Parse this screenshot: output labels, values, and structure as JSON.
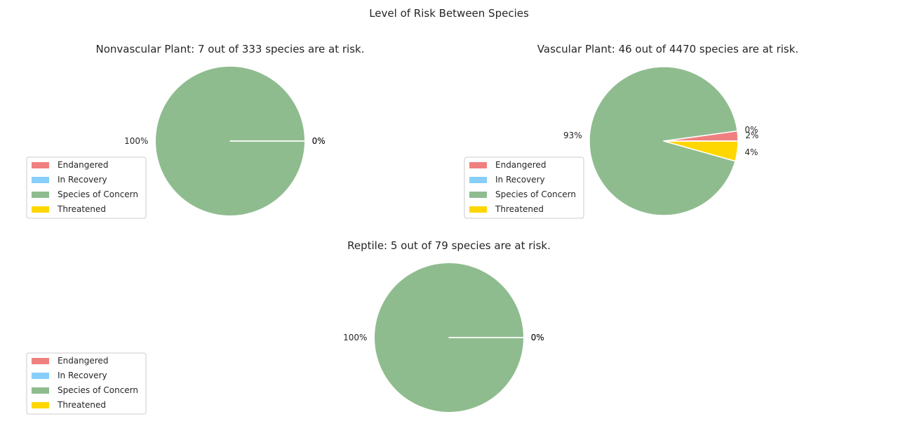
{
  "suptitle": "Level of Risk Between Species",
  "chart_data": [
    {
      "type": "pie",
      "title": "Nonvascular Plant: 7 out of 333 species are at risk.",
      "categories": [
        "Endangered",
        "In Recovery",
        "Species of Concern",
        "Threatened"
      ],
      "values": [
        0,
        0,
        7,
        0
      ],
      "pct_labels": [
        "0%",
        "0%",
        "100%",
        "0%"
      ],
      "legend": {
        "placement": "lower-left",
        "entries": [
          "Endangered",
          "In Recovery",
          "Species of Concern",
          "Threatened"
        ]
      }
    },
    {
      "type": "pie",
      "title": "Vascular Plant: 46 out of 4470 species are at risk.",
      "categories": [
        "Endangered",
        "In Recovery",
        "Species of Concern",
        "Threatened"
      ],
      "values": [
        1,
        0,
        43,
        2
      ],
      "pct_labels": [
        "2%",
        "0%",
        "93%",
        "4%"
      ],
      "legend": {
        "placement": "lower-left",
        "entries": [
          "Endangered",
          "In Recovery",
          "Species of Concern",
          "Threatened"
        ]
      }
    },
    {
      "type": "pie",
      "title": "Reptile: 5 out of 79 species are at risk.",
      "categories": [
        "Endangered",
        "In Recovery",
        "Species of Concern",
        "Threatened"
      ],
      "values": [
        0,
        0,
        5,
        0
      ],
      "pct_labels": [
        "0%",
        "0%",
        "100%",
        "0%"
      ],
      "legend": {
        "placement": "lower-left",
        "entries": [
          "Endangered",
          "In Recovery",
          "Species of Concern",
          "Threatened"
        ]
      }
    }
  ],
  "colors": {
    "Endangered": "#f08080",
    "In Recovery": "#87cefa",
    "Species of Concern": "#8fbc8f",
    "Threatened": "#ffd700"
  }
}
